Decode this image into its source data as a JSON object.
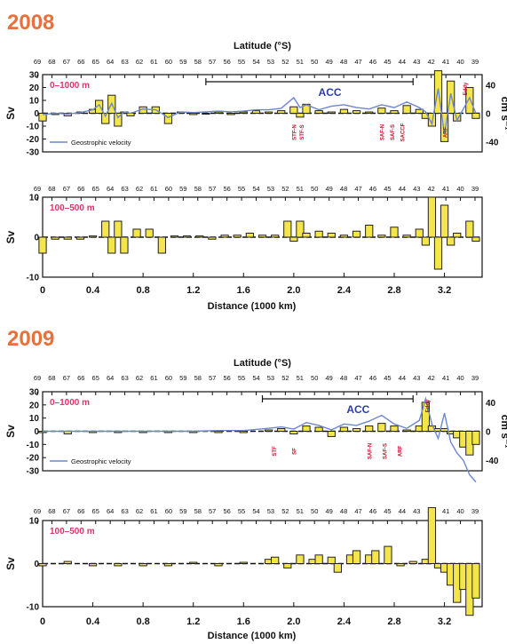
{
  "chart_data": [
    {
      "type": "bar",
      "year": "2008",
      "latitude_title": "Latitude (°S)",
      "latitude_ticks": [
        "69",
        "68",
        "67",
        "66",
        "65",
        "64",
        "63",
        "62",
        "61",
        "60",
        "59",
        "58",
        "57",
        "56",
        "55",
        "54",
        "53",
        "52",
        "51",
        "50",
        "49",
        "48",
        "47",
        "46",
        "45",
        "44",
        "43",
        "42",
        "41",
        "40",
        "39"
      ],
      "panels": [
        {
          "depth_label": "0–1000 m",
          "ylabel": "Sv",
          "ylim": [
            -30,
            30
          ],
          "yticks": [
            30,
            20,
            10,
            0,
            -10,
            -20,
            -30
          ],
          "right_axis_label": "cm s⁻¹",
          "right_ticks": [
            "40",
            "0",
            "-40"
          ],
          "acc_label": "ACC",
          "acc_range_km": [
            1300,
            2950
          ],
          "legend": "Geostrophic velocity",
          "fronts": [
            "STF-N",
            "STF-S",
            "SAF-N",
            "SAF-S",
            "SACCF",
            "ARF",
            "Eddy"
          ],
          "x": [
            0.0,
            0.1,
            0.2,
            0.3,
            0.4,
            0.45,
            0.5,
            0.55,
            0.6,
            0.65,
            0.7,
            0.8,
            0.9,
            1.0,
            1.1,
            1.2,
            1.3,
            1.4,
            1.5,
            1.6,
            1.7,
            1.8,
            1.9,
            2.0,
            2.05,
            2.1,
            2.2,
            2.3,
            2.4,
            2.5,
            2.6,
            2.7,
            2.8,
            2.9,
            3.0,
            3.05,
            3.1,
            3.15,
            3.2,
            3.25,
            3.3,
            3.4,
            3.45
          ],
          "values": [
            -6,
            -1,
            -2,
            1,
            3,
            10,
            -8,
            14,
            -10,
            1,
            -2,
            5,
            5,
            -8,
            1,
            -1,
            0,
            1,
            -1,
            1,
            2,
            1,
            2,
            5,
            -3,
            7,
            2,
            1,
            3,
            2,
            1,
            4,
            2,
            6,
            3,
            -4,
            -10,
            33,
            -22,
            25,
            -6,
            20,
            -4
          ],
          "velocity_x": [
            0.0,
            0.1,
            0.2,
            0.3,
            0.4,
            0.45,
            0.5,
            0.55,
            0.6,
            0.65,
            0.7,
            0.8,
            0.9,
            1.0,
            1.1,
            1.2,
            1.3,
            1.4,
            1.5,
            1.6,
            1.7,
            1.8,
            1.9,
            2.0,
            2.05,
            2.1,
            2.2,
            2.3,
            2.4,
            2.5,
            2.6,
            2.7,
            2.8,
            2.9,
            3.0,
            3.05,
            3.1,
            3.15,
            3.2,
            3.25,
            3.3,
            3.4,
            3.45
          ],
          "velocity_values": [
            -2,
            0,
            -1,
            1,
            5,
            12,
            -4,
            14,
            -6,
            2,
            0,
            6,
            5,
            -6,
            2,
            1,
            2,
            3,
            2,
            3,
            5,
            5,
            7,
            22,
            8,
            12,
            5,
            10,
            12,
            8,
            6,
            12,
            8,
            16,
            8,
            2,
            -15,
            35,
            -30,
            28,
            -10,
            22,
            0
          ]
        },
        {
          "depth_label": "100–500 m",
          "ylabel": "Sv",
          "ylim": [
            -10,
            10
          ],
          "yticks": [
            10,
            0,
            -10
          ],
          "x": [
            0.0,
            0.1,
            0.2,
            0.3,
            0.4,
            0.5,
            0.55,
            0.6,
            0.65,
            0.75,
            0.85,
            0.95,
            1.05,
            1.15,
            1.25,
            1.35,
            1.45,
            1.55,
            1.65,
            1.75,
            1.85,
            1.95,
            2.0,
            2.05,
            2.1,
            2.2,
            2.3,
            2.4,
            2.5,
            2.6,
            2.7,
            2.8,
            2.9,
            3.0,
            3.05,
            3.1,
            3.15,
            3.2,
            3.25,
            3.3,
            3.4,
            3.45
          ],
          "values": [
            -4,
            -0.5,
            -0.5,
            -0.5,
            0.3,
            4,
            -4,
            4,
            -4,
            2,
            2,
            -4,
            0.3,
            0.3,
            0.3,
            -0.5,
            0.5,
            0.5,
            1,
            0.5,
            0.5,
            4,
            -1,
            4,
            1,
            1.5,
            1,
            0.5,
            1.5,
            3,
            0.5,
            2.5,
            0.5,
            2,
            -2,
            10,
            -8,
            8,
            -2,
            1,
            4,
            -1
          ]
        }
      ],
      "xlabel": "Distance (1000 km)",
      "xticks": [
        "0",
        "0.4",
        "0.8",
        "1.2",
        "1.6",
        "2.0",
        "2.4",
        "2.8",
        "3.2"
      ]
    },
    {
      "type": "bar",
      "year": "2009",
      "latitude_title": "Latitude (°S)",
      "latitude_ticks": [
        "69",
        "68",
        "67",
        "66",
        "65",
        "64",
        "63",
        "62",
        "61",
        "60",
        "59",
        "58",
        "57",
        "56",
        "55",
        "54",
        "53",
        "52",
        "51",
        "50",
        "49",
        "48",
        "47",
        "46",
        "45",
        "44",
        "43",
        "42",
        "41",
        "40",
        "39"
      ],
      "panels": [
        {
          "depth_label": "0–1000 m",
          "ylabel": "Sv",
          "ylim": [
            -30,
            30
          ],
          "yticks": [
            30,
            20,
            10,
            0,
            -10,
            -20,
            -30
          ],
          "right_axis_label": "cm s⁻¹",
          "right_ticks": [
            "40",
            "0",
            "-40"
          ],
          "acc_label": "ACC",
          "acc_range_km": [
            1750,
            2950
          ],
          "legend": "Geostrophic velocity",
          "fronts": [
            "STF",
            "SF",
            "SAF-N",
            "SAF-S",
            "ARF",
            "Eddy"
          ],
          "x": [
            0.0,
            0.2,
            0.4,
            0.6,
            0.8,
            1.0,
            1.2,
            1.4,
            1.6,
            1.8,
            1.9,
            2.0,
            2.1,
            2.2,
            2.3,
            2.4,
            2.5,
            2.6,
            2.7,
            2.8,
            2.9,
            3.0,
            3.05,
            3.1,
            3.15,
            3.2,
            3.25,
            3.3,
            3.35,
            3.4,
            3.45
          ],
          "values": [
            -1,
            -2,
            -1,
            -1,
            -1,
            -1,
            -1,
            -1,
            -1,
            1,
            2,
            -2,
            4,
            3,
            -4,
            3,
            2,
            4,
            6,
            4,
            1,
            4,
            22,
            4,
            2,
            2,
            -2,
            -5,
            -12,
            -18,
            -10
          ],
          "velocity_x": [
            0.0,
            0.2,
            0.4,
            0.6,
            0.8,
            1.0,
            1.2,
            1.4,
            1.6,
            1.8,
            1.9,
            2.0,
            2.1,
            2.2,
            2.3,
            2.4,
            2.5,
            2.6,
            2.7,
            2.8,
            2.9,
            3.0,
            3.05,
            3.1,
            3.15,
            3.2,
            3.25,
            3.3,
            3.35,
            3.4,
            3.45
          ],
          "velocity_values": [
            0,
            0,
            0,
            0,
            0,
            0,
            0,
            1,
            1,
            4,
            6,
            3,
            12,
            8,
            2,
            10,
            8,
            14,
            22,
            10,
            4,
            15,
            45,
            10,
            -10,
            25,
            -15,
            -30,
            -40,
            -60,
            -70
          ]
        },
        {
          "depth_label": "100–500 m",
          "ylabel": "Sv",
          "ylim": [
            -10,
            10
          ],
          "yticks": [
            10,
            0,
            -10
          ],
          "x": [
            0.0,
            0.2,
            0.4,
            0.6,
            0.8,
            1.0,
            1.2,
            1.4,
            1.6,
            1.8,
            1.85,
            1.95,
            2.05,
            2.15,
            2.2,
            2.3,
            2.35,
            2.45,
            2.5,
            2.6,
            2.65,
            2.75,
            2.85,
            2.95,
            3.05,
            3.1,
            3.15,
            3.2,
            3.25,
            3.3,
            3.35,
            3.4,
            3.45
          ],
          "values": [
            -0.5,
            0.5,
            -0.5,
            -0.5,
            -0.5,
            -0.5,
            0.3,
            -0.5,
            0.3,
            1,
            1.5,
            -1,
            2,
            1,
            2,
            1.5,
            -2,
            2,
            3,
            2,
            3,
            4,
            -0.5,
            0.5,
            1,
            13,
            -1,
            -2,
            -5,
            -9,
            -6,
            -12,
            -8
          ]
        }
      ],
      "xlabel": "Distance (1000 km)",
      "xticks": [
        "0",
        "0.4",
        "0.8",
        "1.2",
        "1.6",
        "2.0",
        "2.4",
        "2.8",
        "3.2"
      ]
    }
  ]
}
